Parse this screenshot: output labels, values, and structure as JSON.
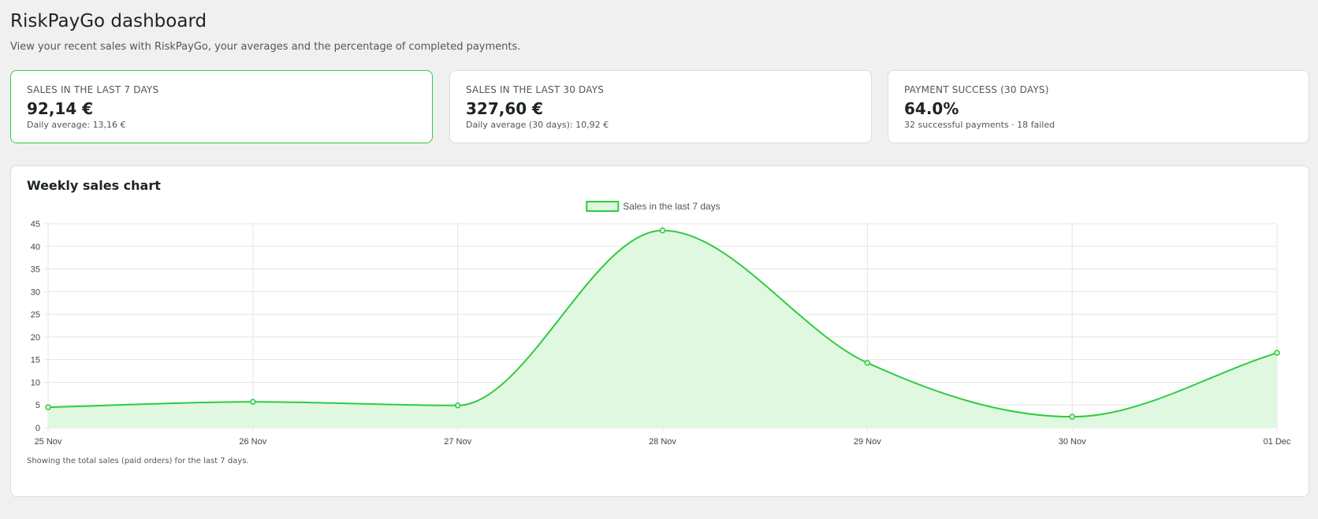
{
  "header": {
    "title": "RiskPayGo dashboard",
    "subtitle": "View your recent sales with RiskPayGo, your averages and the percentage of completed payments."
  },
  "cards": [
    {
      "label": "SALES IN THE LAST 7 DAYS",
      "value": "92,14 €",
      "sub": "Daily average: 13,16 €",
      "highlighted": true
    },
    {
      "label": "SALES IN THE LAST 30 DAYS",
      "value": "327,60 €",
      "sub": "Daily average (30 days): 10,92 €",
      "highlighted": false
    },
    {
      "label": "PAYMENT SUCCESS (30 DAYS)",
      "value": "64.0%",
      "sub": "32 successful payments · 18 failed",
      "highlighted": false
    }
  ],
  "chart_panel": {
    "title": "Weekly sales chart",
    "note": "Showing the total sales (paid orders) for the last 7 days."
  },
  "colors": {
    "accent": "#2ecc40",
    "fill": "#e0f8e0",
    "background": "#f0f0f1"
  },
  "chart_data": {
    "type": "area",
    "categories": [
      "25 Nov",
      "26 Nov",
      "27 Nov",
      "28 Nov",
      "29 Nov",
      "30 Nov",
      "01 Dec"
    ],
    "series": [
      {
        "name": "Sales in the last 7 days",
        "values": [
          4.5,
          5.7,
          4.9,
          43.5,
          14.3,
          2.4,
          16.5
        ]
      }
    ],
    "yticks": [
      0,
      5,
      10,
      15,
      20,
      25,
      30,
      35,
      40,
      45
    ],
    "ylim": [
      0,
      45
    ],
    "grid": true,
    "legend": "top-center"
  }
}
